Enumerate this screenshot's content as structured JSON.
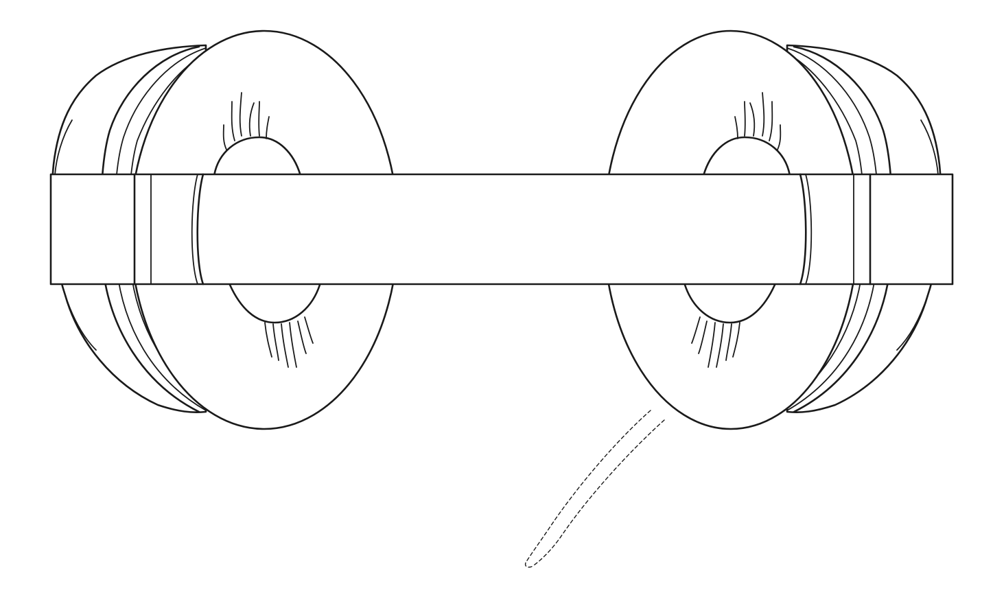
{
  "figure": {
    "subject": "headphones",
    "view": "top",
    "line_color": "#1a1a1a",
    "background_color": "#ffffff",
    "parts": {
      "headband": "headband",
      "left_ear_cup": "left-ear-cup",
      "right_ear_cup": "right-ear-cup",
      "cable": "cable-broken-line"
    }
  }
}
